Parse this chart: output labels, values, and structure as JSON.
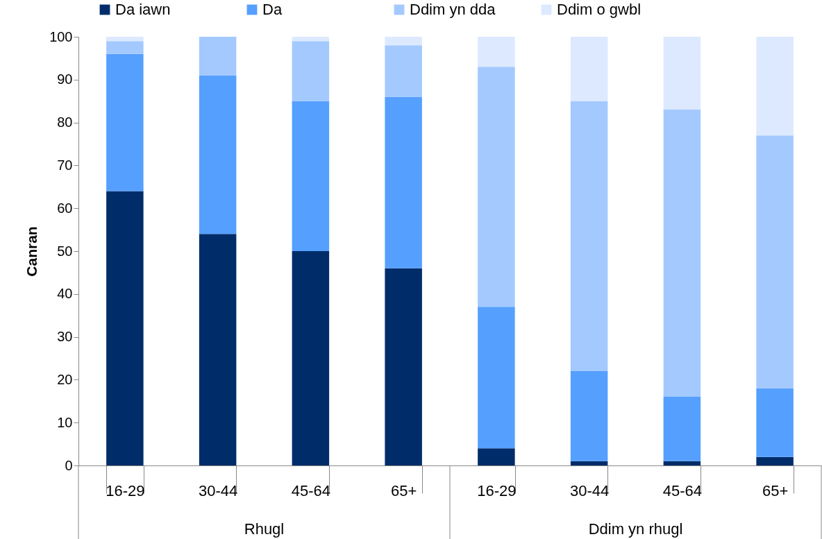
{
  "chart_data": {
    "type": "bar",
    "stacked": true,
    "ylabel": "Canran",
    "categories": [
      "16-29",
      "30-44",
      "45-64",
      "65+",
      "16-29",
      "30-44",
      "45-64",
      "65+"
    ],
    "series": [
      {
        "name": "Da iawn",
        "color": "#002d69",
        "values": [
          64,
          54,
          50,
          46,
          4,
          1,
          1,
          2
        ]
      },
      {
        "name": "Da",
        "color": "#559fff",
        "values": [
          32,
          37,
          35,
          40,
          33,
          21,
          15,
          16
        ]
      },
      {
        "name": "Ddim yn dda",
        "color": "#a3c9ff",
        "values": [
          3,
          9,
          14,
          12,
          56,
          63,
          67,
          59
        ]
      },
      {
        "name": "Ddim o gwbl",
        "color": "#dde9ff",
        "values": [
          1,
          0,
          1,
          2,
          7,
          15,
          17,
          23
        ]
      }
    ],
    "ylim": [
      0,
      100
    ],
    "yticks": [
      0,
      10,
      20,
      30,
      40,
      50,
      60,
      70,
      80,
      90,
      100
    ],
    "grid": false,
    "legend": "top",
    "annotations": [
      "Rhugl",
      "Ddim yn rhugl"
    ]
  }
}
